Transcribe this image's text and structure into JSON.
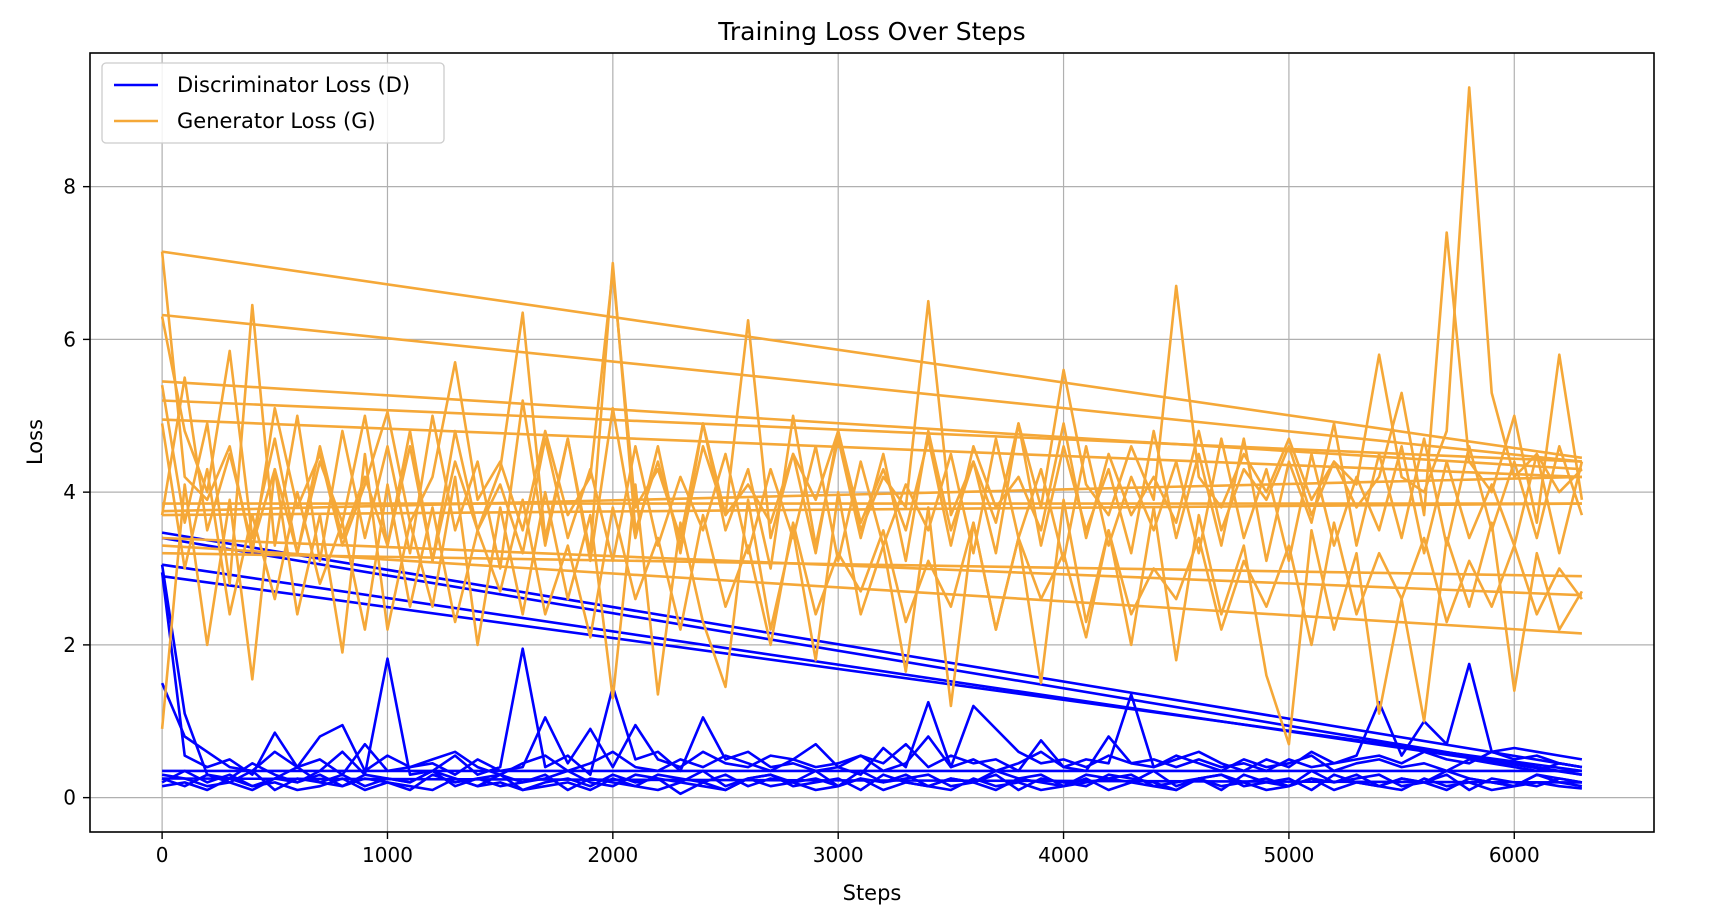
{
  "chart_data": {
    "type": "line",
    "title": "Training Loss Over Steps",
    "xlabel": "Steps",
    "ylabel": "Loss",
    "xlim": [
      -320,
      6620
    ],
    "ylim": [
      -0.45,
      9.75
    ],
    "xticks": [
      0,
      1000,
      2000,
      3000,
      4000,
      5000,
      6000
    ],
    "yticks": [
      0,
      2,
      4,
      6,
      8
    ],
    "grid": true,
    "legend_position": "top-left",
    "step_interval": 100,
    "series": [
      {
        "name": "Discriminator Loss (D)",
        "color": "#0000ff",
        "runs": [
          [
            3.05,
            1.1,
            0.3,
            0.25,
            0.45,
            0.3,
            0.2,
            0.35,
            0.6,
            0.3,
            1.82,
            0.3,
            0.35,
            0.55,
            0.3,
            0.4,
            1.95,
            0.4,
            0.55,
            0.3,
            1.45,
            0.5,
            0.6,
            0.35,
            1.05,
            0.5,
            0.6,
            0.4,
            0.45,
            0.35,
            0.4,
            0.3,
            0.65,
            0.4,
            1.25,
            0.4,
            1.2,
            0.9,
            0.6,
            0.45,
            0.5,
            0.4,
            0.55,
            0.45,
            0.5,
            0.4,
            0.5,
            0.4,
            0.45,
            0.35,
            0.5,
            0.4,
            0.45,
            0.55,
            1.25,
            0.55,
            1.0,
            0.7,
            1.75,
            0.6,
            0.65,
            0.6,
            0.55,
            0.5
          ],
          [
            1.5,
            0.8,
            0.6,
            0.4,
            0.35,
            0.6,
            0.4,
            0.8,
            0.95,
            0.35,
            0.55,
            0.4,
            0.45,
            0.3,
            0.5,
            0.35,
            0.4,
            1.05,
            0.45,
            0.9,
            0.4,
            0.95,
            0.5,
            0.4,
            0.6,
            0.45,
            0.4,
            0.55,
            0.5,
            0.7,
            0.4,
            0.55,
            0.45,
            0.7,
            0.4,
            0.55,
            0.45,
            0.5,
            0.35,
            0.75,
            0.4,
            0.5,
            0.45,
            1.35,
            0.4,
            0.5,
            0.6,
            0.45,
            0.35,
            0.5,
            0.4,
            0.6,
            0.45,
            0.5,
            0.55,
            0.45,
            0.6,
            0.5,
            0.45,
            0.6,
            0.5,
            0.55,
            0.45,
            0.4
          ],
          [
            2.95,
            0.55,
            0.4,
            0.5,
            0.3,
            0.85,
            0.4,
            0.5,
            0.3,
            0.7,
            0.35,
            0.4,
            0.5,
            0.6,
            0.4,
            0.3,
            0.45,
            0.55,
            0.35,
            0.45,
            0.6,
            0.4,
            0.35,
            0.5,
            0.4,
            0.55,
            0.45,
            0.35,
            0.5,
            0.4,
            0.45,
            0.55,
            0.35,
            0.45,
            0.8,
            0.4,
            0.5,
            0.35,
            0.45,
            0.6,
            0.4,
            0.35,
            0.8,
            0.45,
            0.4,
            0.55,
            0.45,
            0.35,
            0.5,
            0.4,
            0.45,
            0.55,
            0.35,
            0.45,
            0.5,
            0.4,
            0.45,
            0.35,
            0.5,
            0.45,
            0.4,
            0.35,
            0.45,
            0.4
          ],
          [
            0.3,
            0.25,
            0.15,
            0.2,
            0.35,
            0.1,
            0.25,
            0.2,
            0.3,
            0.15,
            0.25,
            0.2,
            0.35,
            0.15,
            0.25,
            0.3,
            0.1,
            0.2,
            0.25,
            0.15,
            0.3,
            0.2,
            0.25,
            0.05,
            0.2,
            0.3,
            0.15,
            0.25,
            0.2,
            0.35,
            0.15,
            0.25,
            0.2,
            0.3,
            0.15,
            0.25,
            0.2,
            0.1,
            0.25,
            0.3,
            0.15,
            0.2,
            0.25,
            0.3,
            0.15,
            0.2,
            0.25,
            0.1,
            0.3,
            0.2,
            0.15,
            0.25,
            0.2,
            0.3,
            0.15,
            0.25,
            0.2,
            0.1,
            0.25,
            0.2,
            0.15,
            0.3,
            0.2,
            0.15
          ],
          [
            0.2,
            0.35,
            0.2,
            0.3,
            0.15,
            0.25,
            0.4,
            0.2,
            0.15,
            0.3,
            0.25,
            0.2,
            0.35,
            0.25,
            0.15,
            0.3,
            0.2,
            0.25,
            0.35,
            0.2,
            0.15,
            0.3,
            0.25,
            0.2,
            0.35,
            0.15,
            0.25,
            0.3,
            0.2,
            0.25,
            0.15,
            0.35,
            0.2,
            0.25,
            0.3,
            0.15,
            0.2,
            0.35,
            0.25,
            0.2,
            0.15,
            0.3,
            0.25,
            0.2,
            0.35,
            0.15,
            0.25,
            0.3,
            0.2,
            0.25,
            0.15,
            0.35,
            0.2,
            0.25,
            0.3,
            0.15,
            0.2,
            0.35,
            0.25,
            0.2,
            0.15,
            0.3,
            0.25,
            0.2
          ],
          [
            0.25,
            0.15,
            0.3,
            0.2,
            0.1,
            0.25,
            0.2,
            0.3,
            0.15,
            0.25,
            0.2,
            0.1,
            0.3,
            0.2,
            0.25,
            0.15,
            0.2,
            0.3,
            0.1,
            0.25,
            0.2,
            0.15,
            0.3,
            0.25,
            0.2,
            0.1,
            0.25,
            0.3,
            0.15,
            0.2,
            0.25,
            0.1,
            0.3,
            0.2,
            0.15,
            0.25,
            0.2,
            0.3,
            0.1,
            0.25,
            0.2,
            0.15,
            0.3,
            0.25,
            0.2,
            0.1,
            0.25,
            0.3,
            0.15,
            0.2,
            0.25,
            0.1,
            0.3,
            0.2,
            0.15,
            0.25,
            0.2,
            0.3,
            0.1,
            0.25,
            0.2,
            0.15,
            0.25,
            0.2
          ],
          [
            0.15,
            0.2,
            0.1,
            0.25,
            0.15,
            0.2,
            0.1,
            0.15,
            0.25,
            0.1,
            0.2,
            0.15,
            0.1,
            0.25,
            0.15,
            0.2,
            0.1,
            0.15,
            0.2,
            0.1,
            0.25,
            0.15,
            0.1,
            0.2,
            0.15,
            0.1,
            0.25,
            0.15,
            0.2,
            0.1,
            0.15,
            0.25,
            0.1,
            0.2,
            0.15,
            0.1,
            0.25,
            0.15,
            0.2,
            0.1,
            0.15,
            0.25,
            0.1,
            0.2,
            0.15,
            0.1,
            0.25,
            0.15,
            0.2,
            0.1,
            0.15,
            0.25,
            0.1,
            0.2,
            0.15,
            0.1,
            0.25,
            0.15,
            0.2,
            0.1,
            0.15,
            0.2,
            0.15,
            0.12
          ],
          [
            3.47,
            0.4
          ],
          [
            3.4,
            0.3
          ],
          [
            3.05,
            0.3
          ],
          [
            2.9,
            0.35
          ],
          [
            0.35,
            0.35
          ],
          [
            0.25,
            0.2
          ]
        ]
      },
      {
        "name": "Generator Loss (G)",
        "color": "#f5a838",
        "runs": [
          [
            7.15,
            4.2,
            3.9,
            4.6,
            3.2,
            5.1,
            3.8,
            4.5,
            3.3,
            4.1,
            5.05,
            3.6,
            4.2,
            5.7,
            3.9,
            4.4,
            3.5,
            4.8,
            3.7,
            4.2,
            6.9,
            3.8,
            4.3,
            3.4,
            4.9,
            3.7,
            4.1,
            3.6,
            4.5,
            3.9,
            4.8,
            3.5,
            4.2,
            3.8,
            6.5,
            3.7,
            4.4,
            3.6,
            4.9,
            3.8,
            5.6,
            4.1,
            3.7,
            4.6,
            3.9,
            6.7,
            4.2,
            3.8,
            4.5,
            4.0,
            4.7,
            3.9,
            4.4,
            4.1,
            5.8,
            4.2,
            4.0,
            4.8,
            9.3,
            5.3,
            4.2,
            4.5,
            4.0,
            4.3
          ],
          [
            6.3,
            4.8,
            4.0,
            5.85,
            3.4,
            4.7,
            3.2,
            4.4,
            3.6,
            5.0,
            3.3,
            4.6,
            3.1,
            4.8,
            3.5,
            4.3,
            6.35,
            3.4,
            4.7,
            3.2,
            7.0,
            3.5,
            4.4,
            3.3,
            4.6,
            3.7,
            6.25,
            3.4,
            4.5,
            3.2,
            4.8,
            3.6,
            4.3,
            3.5,
            4.7,
            3.3,
            4.6,
            3.8,
            4.2,
            3.5,
            4.9,
            3.4,
            4.5,
            3.7,
            4.2,
            3.6,
            4.8,
            3.5,
            4.3,
            3.9,
            4.6,
            3.7,
            4.4,
            3.8,
            4.2,
            5.3,
            3.7,
            7.4,
            4.4,
            4.0,
            5.0,
            3.6,
            5.8,
            3.9
          ],
          [
            5.4,
            3.6,
            4.9,
            2.8,
            6.45,
            3.3,
            5.0,
            3.1,
            4.8,
            3.4,
            4.6,
            3.2,
            5.0,
            3.5,
            4.4,
            3.0,
            5.2,
            3.3,
            4.7,
            3.1,
            5.1,
            3.4,
            4.6,
            3.2,
            4.9,
            3.5,
            4.3,
            3.0,
            5.0,
            3.3,
            4.7,
            3.4,
            4.5,
            3.1,
            4.8,
            3.5,
            4.4,
            3.2,
            4.9,
            3.3,
            4.6,
            3.5,
            4.3,
            3.2,
            4.8,
            3.4,
            4.5,
            3.3,
            4.7,
            3.1,
            4.4,
            3.6,
            4.9,
            3.3,
            4.5,
            3.4,
            4.7,
            3.3,
            4.6,
            3.5,
            4.4,
            3.4,
            4.6,
            3.7
          ],
          [
            0.9,
            4.1,
            2.0,
            3.9,
            1.55,
            4.3,
            2.4,
            3.7,
            1.9,
            4.5,
            2.2,
            3.6,
            2.5,
            4.2,
            2.0,
            3.8,
            2.4,
            4.0,
            2.6,
            3.7,
            1.3,
            4.1,
            1.35,
            3.6,
            2.3,
            1.45,
            3.9,
            2.2,
            3.5,
            1.8,
            4.0,
            2.4,
            3.3,
            1.65,
            3.8,
            1.2,
            3.6,
            2.2,
            3.4,
            1.5,
            3.9,
            2.3,
            3.5,
            2.0,
            3.8,
            1.8,
            3.7,
            2.4,
            3.3,
            1.6,
            0.7,
            3.5,
            2.2,
            3.2,
            1.1,
            2.6,
            1.0,
            3.4,
            2.5,
            3.6,
            1.4,
            3.2,
            2.2,
            2.7
          ],
          [
            4.9,
            3.0,
            4.3,
            2.4,
            3.7,
            2.6,
            4.0,
            2.8,
            3.6,
            2.2,
            4.1,
            2.5,
            3.8,
            2.3,
            3.5,
            2.7,
            3.9,
            2.4,
            3.3,
            2.1,
            3.8,
            2.6,
            3.4,
            2.2,
            3.7,
            2.5,
            3.3,
            2.0,
            3.6,
            2.4,
            3.2,
            2.7,
            3.5,
            2.3,
            3.1,
            2.5,
            3.6,
            2.2,
            3.4,
            2.6,
            3.2,
            2.1,
            3.5,
            2.4,
            3.0,
            2.6,
            3.4,
            2.2,
            3.1,
            2.5,
            3.3,
            2.0,
            3.6,
            2.4,
            3.2,
            2.6,
            3.4,
            2.3,
            3.1,
            2.5,
            3.3,
            2.4,
            3.0,
            2.6
          ],
          [
            3.7,
            5.5,
            3.5,
            4.5,
            3.3,
            4.3,
            3.2,
            4.6,
            3.4,
            4.2,
            3.3,
            4.8,
            3.1,
            4.4,
            3.5,
            4.1,
            3.2,
            4.7,
            3.4,
            4.3,
            3.1,
            4.6,
            3.3,
            4.2,
            3.5,
            4.5,
            3.2,
            4.3,
            3.4,
            4.6,
            3.1,
            4.4,
            3.3,
            4.1,
            3.5,
            4.5,
            3.2,
            4.7,
            3.4,
            4.3,
            3.1,
            4.6,
            3.3,
            4.2,
            3.5,
            4.4,
            3.2,
            4.7,
            3.4,
            4.3,
            3.1,
            4.5,
            3.3,
            4.2,
            3.5,
            4.6,
            3.2,
            4.4,
            3.4,
            4.1,
            3.3,
            4.5,
            3.2,
            4.4
          ],
          [
            7.15,
            4.45
          ],
          [
            6.32,
            4.4
          ],
          [
            5.45,
            4.3
          ],
          [
            5.2,
            4.4
          ],
          [
            4.95,
            4.2
          ],
          [
            3.85,
            3.85
          ],
          [
            3.75,
            4.2
          ],
          [
            3.7,
            3.85
          ],
          [
            3.4,
            2.65
          ],
          [
            3.3,
            2.15
          ],
          [
            3.2,
            2.9
          ]
        ]
      }
    ]
  }
}
